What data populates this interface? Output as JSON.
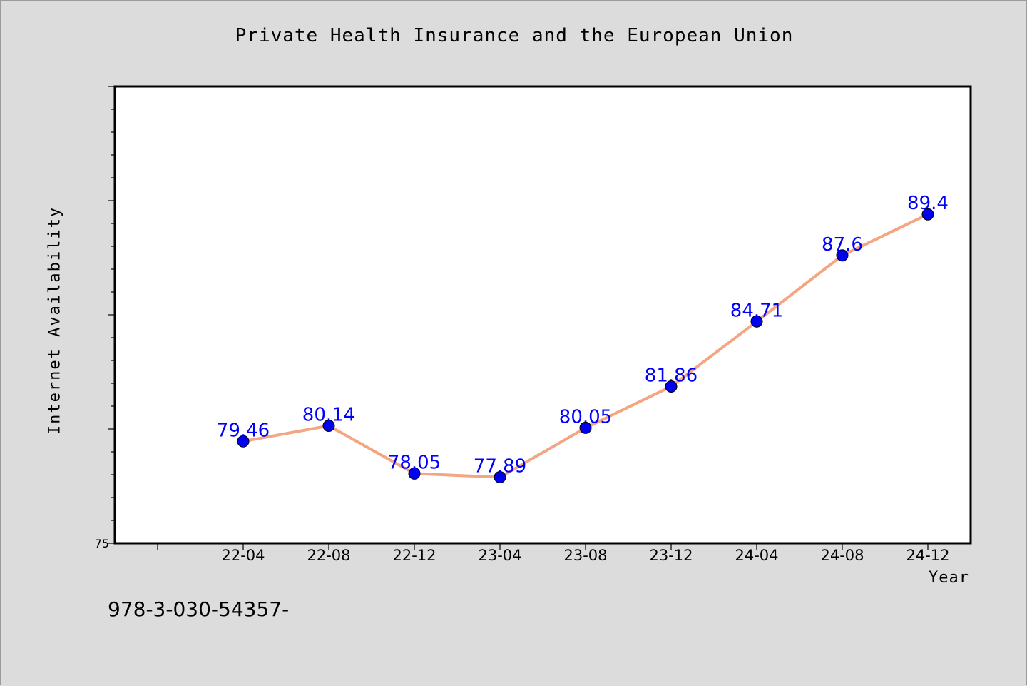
{
  "chart_data": {
    "type": "line",
    "title": "Private Health Insurance and the European Union",
    "xlabel": "Year",
    "ylabel": "Internet Availability",
    "categories": [
      "22-04",
      "22-08",
      "22-12",
      "23-04",
      "23-08",
      "23-12",
      "24-04",
      "24-08",
      "24-12"
    ],
    "series": [
      {
        "values": [
          79.46,
          80.14,
          78.05,
          77.89,
          80.05,
          81.86,
          84.71,
          87.6,
          89.4
        ],
        "data_labels": [
          "79.46",
          "80.14",
          "78.05",
          "77.89",
          "80.05",
          "81.86",
          "84.71",
          "87.6",
          "89.4"
        ]
      }
    ],
    "ylim": [
      75,
      95
    ],
    "y_tick_labels": [
      "75"
    ],
    "grid": false,
    "line_color": "#f4a582",
    "marker_color": "#0000ee",
    "label_color": "#0000ff"
  },
  "footer": {
    "text": "978-3-030-54357-"
  }
}
